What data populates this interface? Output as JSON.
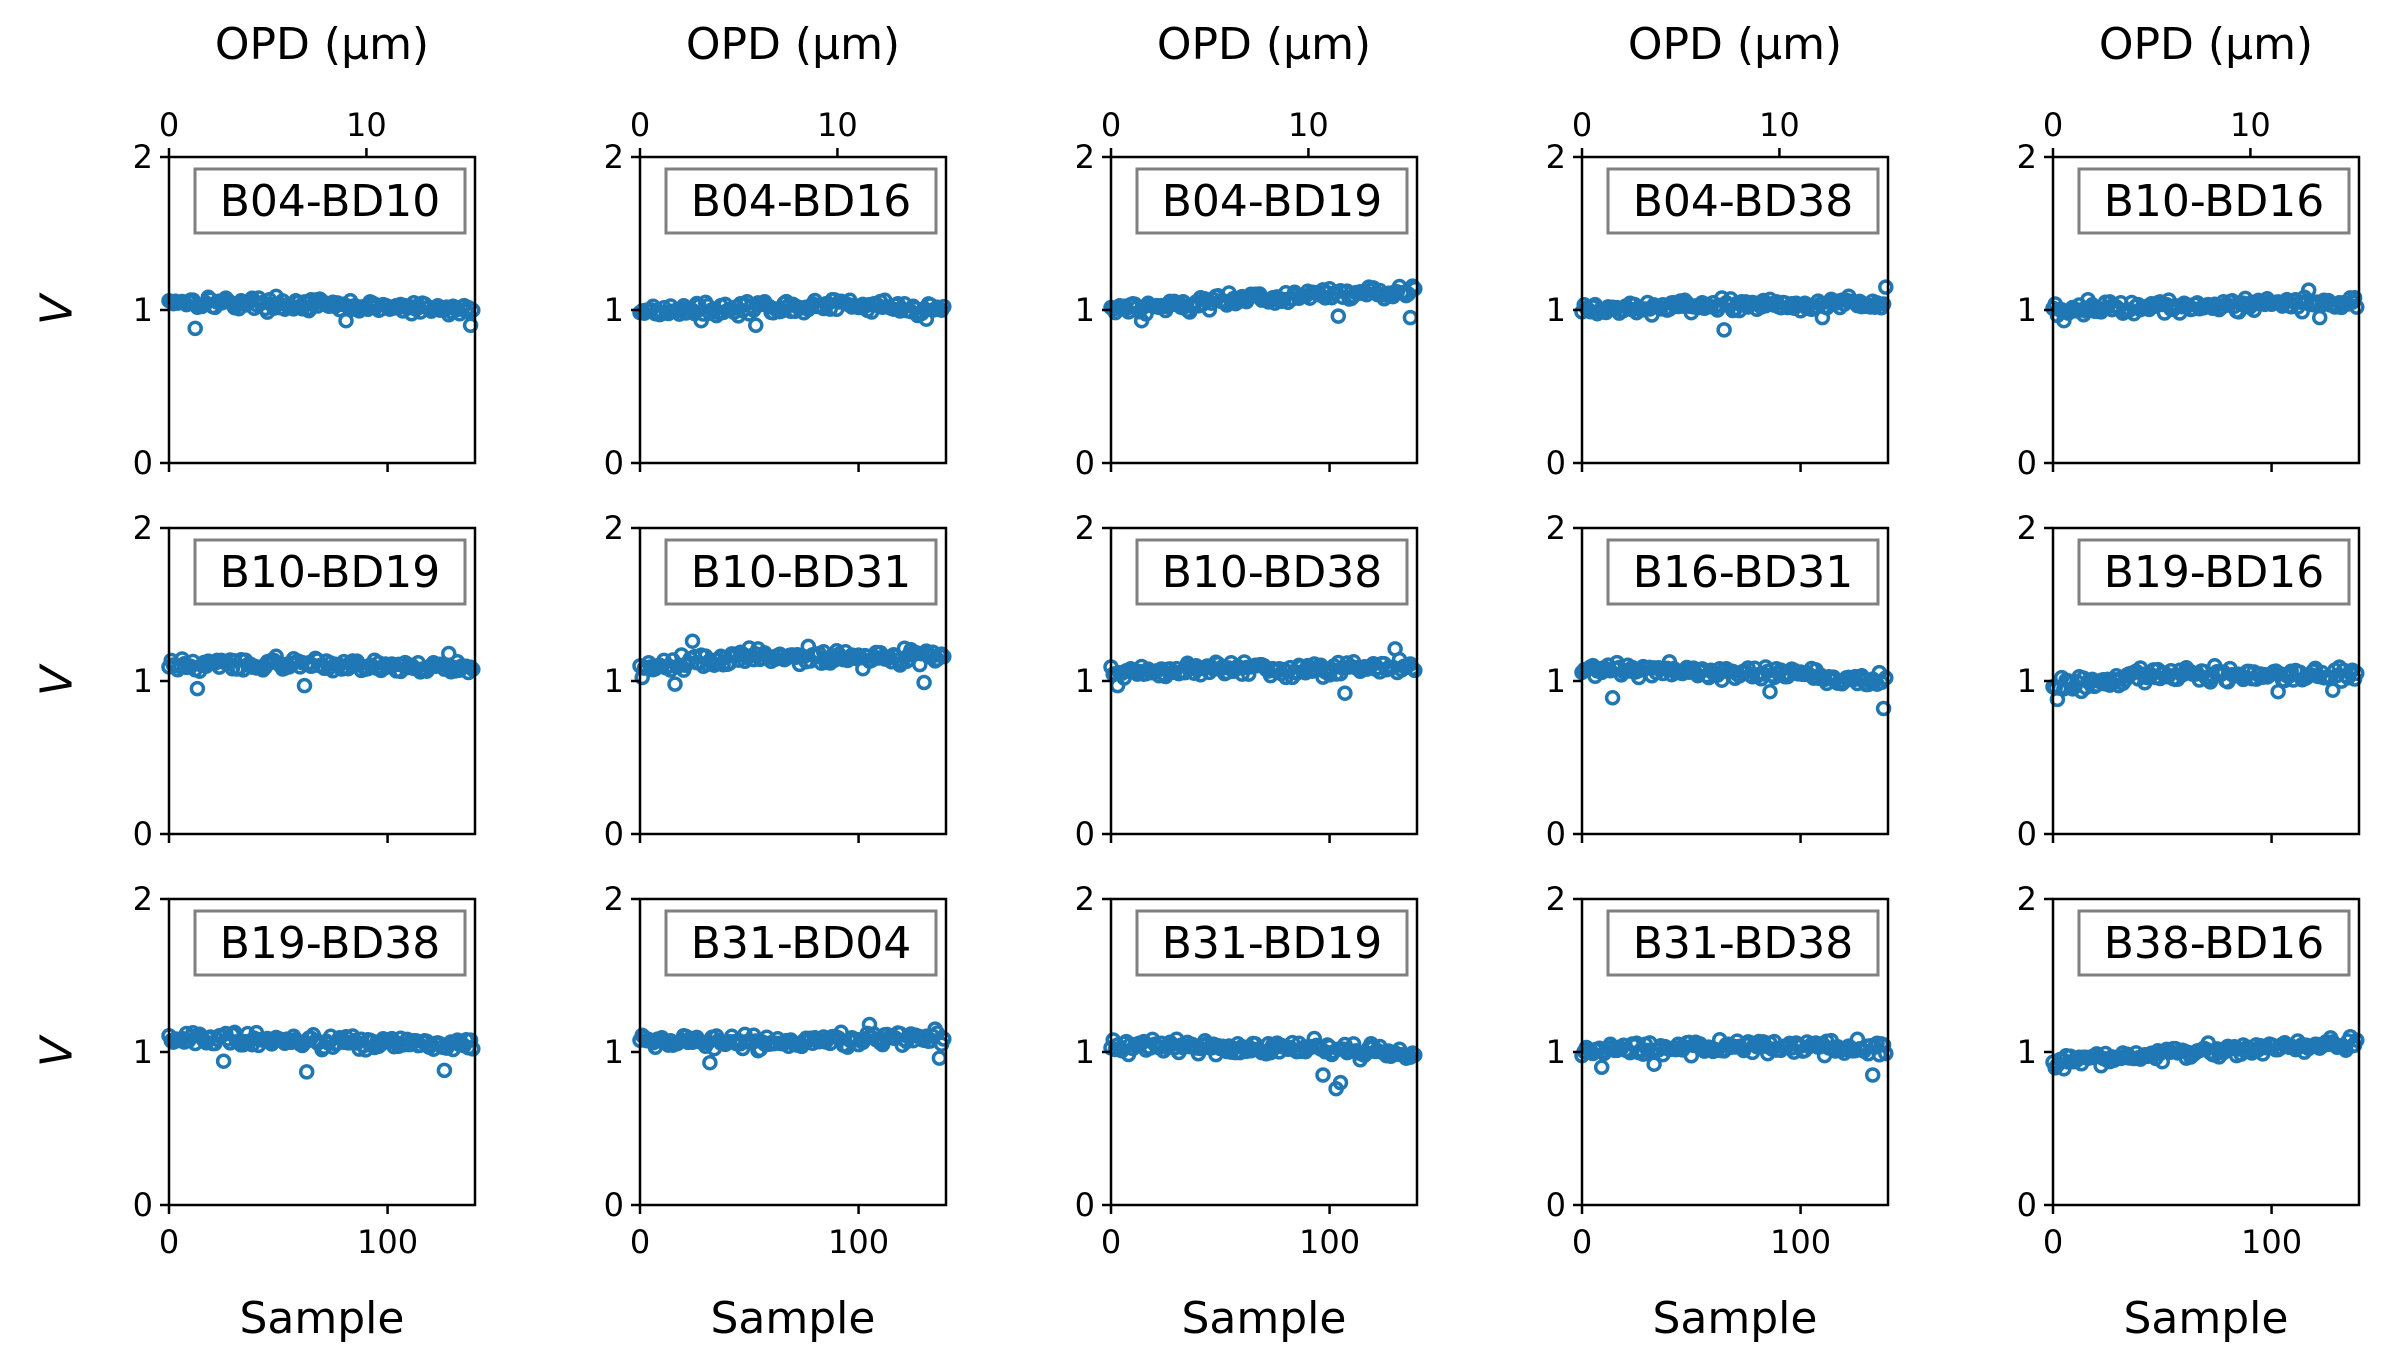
{
  "chart_data": {
    "type": "scatter",
    "layout": {
      "rows": 3,
      "cols": 5
    },
    "marker": "hollow-circle",
    "series_color": "#1f77b4",
    "x_axis": {
      "label": "Sample",
      "range": [
        0,
        140
      ],
      "ticks": [
        0,
        100
      ],
      "tick_labels": [
        "0",
        "100"
      ]
    },
    "top_axis": {
      "label": "OPD (μm)",
      "range": [
        0,
        15.5
      ],
      "ticks": [
        0,
        10
      ],
      "tick_labels": [
        "0",
        "10"
      ]
    },
    "y_axis": {
      "label": "V",
      "range": [
        0,
        2
      ],
      "ticks": [
        0,
        1,
        2
      ],
      "tick_labels": [
        "0",
        "1",
        "2"
      ]
    },
    "panels": [
      {
        "label": "B04-BD10",
        "trend": [
          1.06,
          1.04,
          1.02,
          1.0
        ],
        "noise": 0.035,
        "dips": [
          [
            12,
            0.88
          ],
          [
            81,
            0.93
          ],
          [
            138,
            0.9
          ]
        ]
      },
      {
        "label": "B04-BD16",
        "trend": [
          1.0,
          1.01,
          1.03,
          1.01
        ],
        "noise": 0.035,
        "dips": [
          [
            28,
            0.93
          ],
          [
            53,
            0.9
          ],
          [
            131,
            0.94
          ]
        ]
      },
      {
        "label": "B04-BD19",
        "trend": [
          1.01,
          1.05,
          1.1,
          1.11
        ],
        "noise": 0.04,
        "dips": [
          [
            14,
            0.93
          ],
          [
            104,
            0.96
          ],
          [
            137,
            0.95
          ]
        ]
      },
      {
        "label": "B04-BD38",
        "trend": [
          1.0,
          1.02,
          1.04,
          1.04
        ],
        "noise": 0.035,
        "dips": [
          [
            65,
            0.87
          ],
          [
            110,
            0.95
          ],
          [
            139,
            1.15
          ]
        ]
      },
      {
        "label": "B10-BD16",
        "trend": [
          1.0,
          1.03,
          1.04,
          1.05
        ],
        "noise": 0.04,
        "dips": [
          [
            5,
            0.93
          ],
          [
            122,
            0.95
          ],
          [
            117,
            1.13
          ]
        ]
      },
      {
        "label": "B10-BD19",
        "trend": [
          1.1,
          1.11,
          1.1,
          1.09
        ],
        "noise": 0.035,
        "dips": [
          [
            13,
            0.95
          ],
          [
            62,
            0.97
          ],
          [
            128,
            1.18
          ]
        ]
      },
      {
        "label": "B10-BD31",
        "trend": [
          1.08,
          1.16,
          1.15,
          1.16
        ],
        "noise": 0.045,
        "dips": [
          [
            16,
            0.98
          ],
          [
            24,
            1.26
          ],
          [
            130,
            0.99
          ]
        ]
      },
      {
        "label": "B10-BD38",
        "trend": [
          1.05,
          1.07,
          1.08,
          1.1
        ],
        "noise": 0.04,
        "dips": [
          [
            3,
            0.97
          ],
          [
            107,
            0.92
          ],
          [
            130,
            1.21
          ]
        ]
      },
      {
        "label": "B16-BD31",
        "trend": [
          1.08,
          1.07,
          1.05,
          0.99
        ],
        "noise": 0.04,
        "dips": [
          [
            14,
            0.89
          ],
          [
            86,
            0.93
          ],
          [
            138,
            0.82
          ]
        ]
      },
      {
        "label": "B19-BD16",
        "trend": [
          0.96,
          1.04,
          1.04,
          1.05
        ],
        "noise": 0.045,
        "dips": [
          [
            2,
            0.88
          ],
          [
            103,
            0.93
          ],
          [
            128,
            0.94
          ]
        ]
      },
      {
        "label": "B19-BD38",
        "trend": [
          1.08,
          1.08,
          1.06,
          1.05
        ],
        "noise": 0.04,
        "dips": [
          [
            25,
            0.94
          ],
          [
            63,
            0.87
          ],
          [
            126,
            0.88
          ]
        ]
      },
      {
        "label": "B31-BD04",
        "trend": [
          1.07,
          1.06,
          1.08,
          1.1
        ],
        "noise": 0.04,
        "dips": [
          [
            32,
            0.93
          ],
          [
            105,
            1.18
          ],
          [
            137,
            0.96
          ]
        ]
      },
      {
        "label": "B31-BD19",
        "trend": [
          1.04,
          1.03,
          1.03,
          0.98
        ],
        "noise": 0.04,
        "dips": [
          [
            97,
            0.85
          ],
          [
            103,
            0.76
          ],
          [
            105,
            0.8
          ]
        ]
      },
      {
        "label": "B31-BD38",
        "trend": [
          1.01,
          1.03,
          1.04,
          1.02
        ],
        "noise": 0.04,
        "dips": [
          [
            9,
            0.9
          ],
          [
            33,
            0.92
          ],
          [
            133,
            0.85
          ]
        ]
      },
      {
        "label": "B38-BD16",
        "trend": [
          0.94,
          0.99,
          1.02,
          1.05
        ],
        "noise": 0.035,
        "dips": [
          [
            5,
            0.89
          ],
          [
            22,
            0.91
          ],
          [
            136,
            1.1
          ]
        ]
      }
    ],
    "points_per_panel": 140
  }
}
